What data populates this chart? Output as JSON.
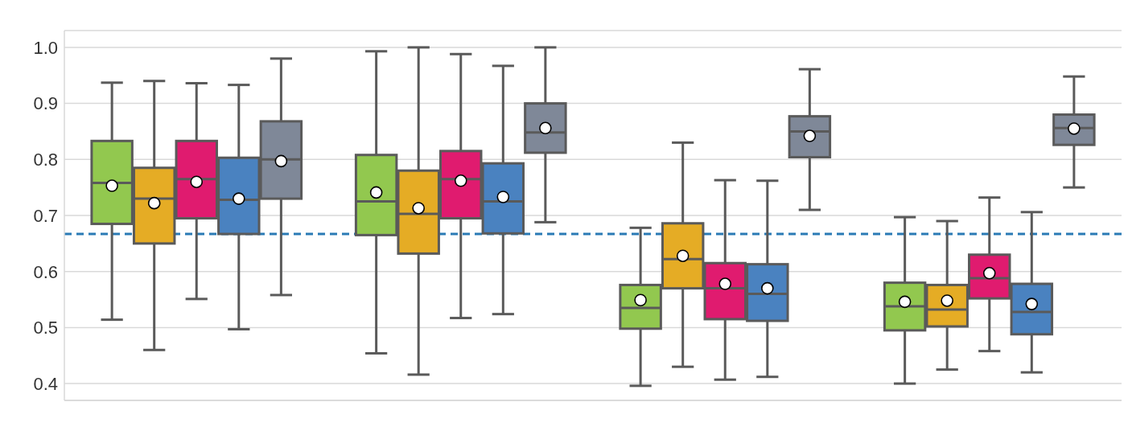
{
  "chart_data": {
    "type": "box",
    "categories": [
      null,
      null,
      null,
      null
    ],
    "ylim": [
      0.37,
      1.03
    ],
    "yticks": [
      0.4,
      0.5,
      0.6,
      0.7,
      0.8,
      0.9,
      {
        "value": 1.0,
        "label": "1.0"
      }
    ],
    "grid": "y",
    "tick_labels": "y",
    "marker": "circle",
    "ref_lines": [
      {
        "axis": "y",
        "value": 0.667,
        "color": "#2a7ab5",
        "line_style": "dashed"
      }
    ],
    "series": [
      {
        "color": "#92c84f",
        "boxes": [
          {
            "low": 0.514,
            "q1": 0.685,
            "median": 0.758,
            "q3": 0.833,
            "high": 0.937,
            "mean": 0.753
          },
          {
            "low": 0.454,
            "q1": 0.665,
            "median": 0.725,
            "q3": 0.808,
            "high": 0.993,
            "mean": 0.741
          },
          {
            "low": 0.396,
            "q1": 0.498,
            "median": 0.535,
            "q3": 0.576,
            "high": 0.678,
            "mean": 0.549
          },
          {
            "low": 0.4,
            "q1": 0.495,
            "median": 0.538,
            "q3": 0.58,
            "high": 0.697,
            "mean": 0.546
          }
        ]
      },
      {
        "color": "#e5ac25",
        "boxes": [
          {
            "low": 0.46,
            "q1": 0.65,
            "median": 0.73,
            "q3": 0.785,
            "high": 0.94,
            "mean": 0.722
          },
          {
            "low": 0.416,
            "q1": 0.632,
            "median": 0.703,
            "q3": 0.78,
            "high": 1.0,
            "mean": 0.713
          },
          {
            "low": 0.43,
            "q1": 0.57,
            "median": 0.622,
            "q3": 0.686,
            "high": 0.83,
            "mean": 0.628
          },
          {
            "low": 0.425,
            "q1": 0.502,
            "median": 0.532,
            "q3": 0.576,
            "high": 0.69,
            "mean": 0.548
          }
        ]
      },
      {
        "color": "#e01b6f",
        "boxes": [
          {
            "low": 0.551,
            "q1": 0.695,
            "median": 0.765,
            "q3": 0.833,
            "high": 0.936,
            "mean": 0.76
          },
          {
            "low": 0.517,
            "q1": 0.695,
            "median": 0.765,
            "q3": 0.815,
            "high": 0.988,
            "mean": 0.762
          },
          {
            "low": 0.407,
            "q1": 0.515,
            "median": 0.57,
            "q3": 0.615,
            "high": 0.763,
            "mean": 0.578
          },
          {
            "low": 0.458,
            "q1": 0.552,
            "median": 0.588,
            "q3": 0.63,
            "high": 0.732,
            "mean": 0.597
          }
        ]
      },
      {
        "color": "#4a82c0",
        "boxes": [
          {
            "low": 0.497,
            "q1": 0.667,
            "median": 0.728,
            "q3": 0.803,
            "high": 0.933,
            "mean": 0.73
          },
          {
            "low": 0.524,
            "q1": 0.668,
            "median": 0.725,
            "q3": 0.793,
            "high": 0.967,
            "mean": 0.733
          },
          {
            "low": 0.412,
            "q1": 0.512,
            "median": 0.56,
            "q3": 0.613,
            "high": 0.762,
            "mean": 0.57
          },
          {
            "low": 0.42,
            "q1": 0.488,
            "median": 0.528,
            "q3": 0.578,
            "high": 0.706,
            "mean": 0.542
          }
        ]
      },
      {
        "color": "#7f8898",
        "boxes": [
          {
            "low": 0.558,
            "q1": 0.73,
            "median": 0.8,
            "q3": 0.868,
            "high": 0.98,
            "mean": 0.797
          },
          {
            "low": 0.688,
            "q1": 0.812,
            "median": 0.848,
            "q3": 0.9,
            "high": 1.0,
            "mean": 0.856
          },
          {
            "low": 0.71,
            "q1": 0.804,
            "median": 0.85,
            "q3": 0.877,
            "high": 0.961,
            "mean": 0.842
          },
          {
            "low": 0.75,
            "q1": 0.826,
            "median": 0.856,
            "q3": 0.88,
            "high": 0.948,
            "mean": 0.855
          }
        ]
      }
    ]
  }
}
